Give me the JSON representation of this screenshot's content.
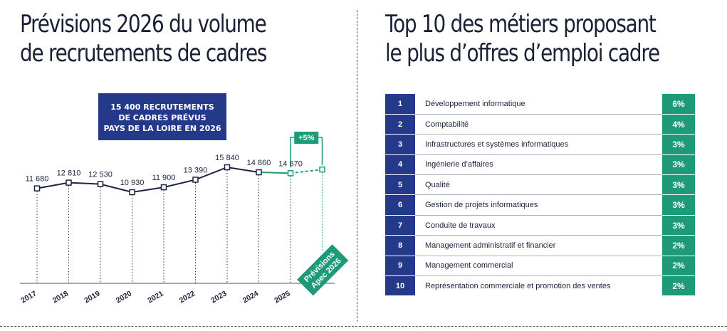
{
  "left_panel": {
    "title_line1": "Prévisions 2026 du volume",
    "title_line2": "de recrutements de cadres",
    "callout_lines": [
      "15 400 RECRUTEMENTS",
      "DE CADRES PRÉVUS",
      "PAYS DE LA LOIRE EN 2026"
    ],
    "growth_badge": "+5%",
    "forecast_badge_lines": [
      "Prévisions",
      "Apec 2026"
    ]
  },
  "right_panel": {
    "title_line1": "Top 10 des métiers proposant",
    "title_line2": "le plus d’offres d’emploi cadre",
    "rows": [
      {
        "rank": "1",
        "label": "Développement informatique",
        "pct": "6%"
      },
      {
        "rank": "2",
        "label": "Comptabilité",
        "pct": "4%"
      },
      {
        "rank": "3",
        "label": "Infrastructures et systèmes informatiques",
        "pct": "3%"
      },
      {
        "rank": "4",
        "label": "Ingénierie d’affaires",
        "pct": "3%"
      },
      {
        "rank": "5",
        "label": "Qualité",
        "pct": "3%"
      },
      {
        "rank": "6",
        "label": "Gestion de projets informatiques",
        "pct": "3%"
      },
      {
        "rank": "7",
        "label": "Conduite de travaux",
        "pct": "3%"
      },
      {
        "rank": "8",
        "label": "Management administratif et financier",
        "pct": "2%"
      },
      {
        "rank": "9",
        "label": "Management commercial",
        "pct": "2%"
      },
      {
        "rank": "10",
        "label": "Représentation commerciale et promotion des ventes",
        "pct": "2%"
      }
    ]
  },
  "colors": {
    "navy": "#24398a",
    "green": "#1d9a78",
    "line": "#1e2340"
  },
  "chart_data": [
    {
      "type": "line",
      "title": "Prévisions 2026 du volume de recrutements de cadres",
      "categories": [
        "2017",
        "2018",
        "2019",
        "2020",
        "2021",
        "2022",
        "2023",
        "2024",
        "2025"
      ],
      "values": [
        11680,
        12810,
        12530,
        10930,
        11900,
        13390,
        15840,
        14860,
        14670
      ],
      "value_labels": [
        "11 680",
        "12 810",
        "12 530",
        "10 930",
        "11 900",
        "13 390",
        "15 840",
        "14 860",
        "14 670"
      ],
      "forecast": {
        "category": "Prévisions Apec 2026",
        "value": 15400,
        "growth": "+5%"
      },
      "ylim": [
        0,
        17000
      ],
      "grid": false
    },
    {
      "type": "table",
      "title": "Top 10 des métiers proposant le plus d’offres d’emploi cadre",
      "columns": [
        "rank",
        "label",
        "pct"
      ],
      "rows": [
        [
          "1",
          "Développement informatique",
          "6%"
        ],
        [
          "2",
          "Comptabilité",
          "4%"
        ],
        [
          "3",
          "Infrastructures et systèmes informatiques",
          "3%"
        ],
        [
          "4",
          "Ingénierie d’affaires",
          "3%"
        ],
        [
          "5",
          "Qualité",
          "3%"
        ],
        [
          "6",
          "Gestion de projets informatiques",
          "3%"
        ],
        [
          "7",
          "Conduite de travaux",
          "3%"
        ],
        [
          "8",
          "Management administratif et financier",
          "2%"
        ],
        [
          "9",
          "Management commercial",
          "2%"
        ],
        [
          "10",
          "Représentation commerciale et promotion des ventes",
          "2%"
        ]
      ]
    }
  ]
}
